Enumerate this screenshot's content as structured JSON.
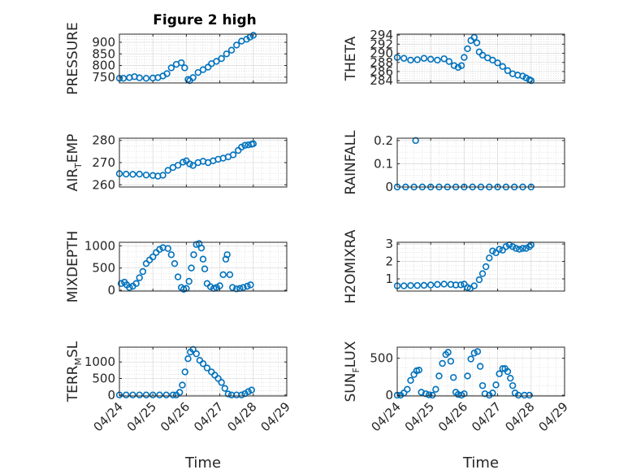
{
  "title": "Figure 2 high",
  "x_axis_label": "Time",
  "x_tick_labels": [
    "04/24",
    "04/25",
    "04/26",
    "04/27",
    "04/28",
    "04/29"
  ],
  "colors": {
    "marker": "#0072BD",
    "axis": "#262626",
    "grid": "#d0d0d0"
  },
  "chart_data": [
    {
      "type": "scatter",
      "key": "pressure",
      "position": "top-left",
      "ylabel": "PRESSURE",
      "ylim": [
        725,
        935
      ],
      "yticks": [
        750,
        800,
        850,
        900
      ],
      "ytick_labels": [
        "750",
        "800",
        "850",
        "900"
      ],
      "x_range_days": [
        0,
        5
      ],
      "points": [
        [
          0.0,
          745
        ],
        [
          0.12,
          745
        ],
        [
          0.3,
          748
        ],
        [
          0.45,
          752
        ],
        [
          0.6,
          747
        ],
        [
          0.8,
          745
        ],
        [
          1.0,
          746
        ],
        [
          1.15,
          748
        ],
        [
          1.3,
          755
        ],
        [
          1.42,
          765
        ],
        [
          1.55,
          790
        ],
        [
          1.7,
          805
        ],
        [
          1.85,
          812
        ],
        [
          1.95,
          790
        ],
        [
          2.05,
          740
        ],
        [
          2.1,
          735
        ],
        [
          2.2,
          748
        ],
        [
          2.35,
          770
        ],
        [
          2.5,
          782
        ],
        [
          2.65,
          793
        ],
        [
          2.75,
          808
        ],
        [
          2.9,
          818
        ],
        [
          3.05,
          830
        ],
        [
          3.2,
          850
        ],
        [
          3.35,
          866
        ],
        [
          3.5,
          888
        ],
        [
          3.65,
          905
        ],
        [
          3.8,
          913
        ],
        [
          3.9,
          922
        ],
        [
          4.0,
          930
        ]
      ]
    },
    {
      "type": "scatter",
      "key": "theta",
      "position": "top-right",
      "ylabel": "THETA",
      "ylim": [
        283.5,
        294.2
      ],
      "yticks": [
        284,
        286,
        288,
        290,
        292,
        294
      ],
      "ytick_labels": [
        "284",
        "286",
        "288",
        "290",
        "292",
        "294"
      ],
      "x_range_days": [
        0,
        5
      ],
      "points": [
        [
          0.0,
          289.1
        ],
        [
          0.2,
          288.9
        ],
        [
          0.4,
          288.5
        ],
        [
          0.6,
          288.6
        ],
        [
          0.8,
          288.9
        ],
        [
          1.0,
          288.7
        ],
        [
          1.2,
          288.5
        ],
        [
          1.4,
          288.8
        ],
        [
          1.55,
          288.2
        ],
        [
          1.7,
          287.3
        ],
        [
          1.82,
          286.9
        ],
        [
          1.92,
          287.3
        ],
        [
          2.0,
          289.1
        ],
        [
          2.1,
          291.0
        ],
        [
          2.2,
          292.8
        ],
        [
          2.3,
          293.5
        ],
        [
          2.38,
          292.3
        ],
        [
          2.45,
          290.3
        ],
        [
          2.55,
          289.6
        ],
        [
          2.7,
          289.0
        ],
        [
          2.85,
          288.5
        ],
        [
          3.0,
          287.9
        ],
        [
          3.15,
          287.1
        ],
        [
          3.3,
          286.2
        ],
        [
          3.45,
          285.5
        ],
        [
          3.6,
          285.2
        ],
        [
          3.75,
          285.0
        ],
        [
          3.85,
          284.6
        ],
        [
          3.95,
          284.2
        ],
        [
          4.0,
          284.0
        ]
      ]
    },
    {
      "type": "scatter",
      "key": "air_temp",
      "position": "row2-left",
      "ylabel": "AIR",
      "ylabel_sub": "T",
      "ylabel_suffix": "EMP",
      "ylim": [
        259,
        281
      ],
      "yticks": [
        260,
        270,
        280
      ],
      "ytick_labels": [
        "260",
        "270",
        "280"
      ],
      "x_range_days": [
        0,
        5
      ],
      "points": [
        [
          0.0,
          265.0
        ],
        [
          0.2,
          264.8
        ],
        [
          0.4,
          264.7
        ],
        [
          0.6,
          264.8
        ],
        [
          0.8,
          264.4
        ],
        [
          1.0,
          264.2
        ],
        [
          1.15,
          263.9
        ],
        [
          1.3,
          264.3
        ],
        [
          1.45,
          266.5
        ],
        [
          1.6,
          267.8
        ],
        [
          1.75,
          268.8
        ],
        [
          1.9,
          270.2
        ],
        [
          2.0,
          270.8
        ],
        [
          2.1,
          269.4
        ],
        [
          2.2,
          268.7
        ],
        [
          2.35,
          270.0
        ],
        [
          2.5,
          270.6
        ],
        [
          2.65,
          270.0
        ],
        [
          2.8,
          270.8
        ],
        [
          2.95,
          271.5
        ],
        [
          3.1,
          272.0
        ],
        [
          3.25,
          272.6
        ],
        [
          3.4,
          273.5
        ],
        [
          3.55,
          275.5
        ],
        [
          3.65,
          277.0
        ],
        [
          3.75,
          277.8
        ],
        [
          3.85,
          278.0
        ],
        [
          3.95,
          278.3
        ],
        [
          4.0,
          278.5
        ]
      ]
    },
    {
      "type": "scatter",
      "key": "rainfall",
      "position": "row2-right",
      "ylabel": "RAINFALL",
      "ylim": [
        0,
        0.21
      ],
      "yticks": [
        0,
        0.1,
        0.2
      ],
      "ytick_labels": [
        "0",
        "0.1",
        "0.2"
      ],
      "x_range_days": [
        0,
        5
      ],
      "points": [
        [
          0.0,
          0
        ],
        [
          0.25,
          0
        ],
        [
          0.5,
          0
        ],
        [
          0.55,
          0.2
        ],
        [
          0.75,
          0
        ],
        [
          1.0,
          0
        ],
        [
          1.25,
          0
        ],
        [
          1.5,
          0
        ],
        [
          1.75,
          0
        ],
        [
          2.0,
          0
        ],
        [
          2.25,
          0
        ],
        [
          2.5,
          0
        ],
        [
          2.75,
          0
        ],
        [
          3.0,
          0
        ],
        [
          3.25,
          0
        ],
        [
          3.5,
          0
        ],
        [
          3.75,
          0
        ],
        [
          4.0,
          0
        ]
      ]
    },
    {
      "type": "scatter",
      "key": "mixdepth",
      "position": "row3-left",
      "ylabel": "MIXDEPTH",
      "ylim": [
        -20,
        1080
      ],
      "yticks": [
        0,
        500,
        1000
      ],
      "ytick_labels": [
        "0",
        "500",
        "1000"
      ],
      "x_range_days": [
        0,
        5
      ],
      "points": [
        [
          0.05,
          150
        ],
        [
          0.15,
          180
        ],
        [
          0.22,
          120
        ],
        [
          0.3,
          60
        ],
        [
          0.4,
          90
        ],
        [
          0.5,
          150
        ],
        [
          0.6,
          280
        ],
        [
          0.7,
          420
        ],
        [
          0.8,
          600
        ],
        [
          0.9,
          680
        ],
        [
          1.0,
          750
        ],
        [
          1.1,
          850
        ],
        [
          1.2,
          920
        ],
        [
          1.3,
          960
        ],
        [
          1.45,
          940
        ],
        [
          1.55,
          800
        ],
        [
          1.65,
          600
        ],
        [
          1.75,
          300
        ],
        [
          1.85,
          60
        ],
        [
          1.92,
          20
        ],
        [
          2.0,
          40
        ],
        [
          2.08,
          200
        ],
        [
          2.15,
          500
        ],
        [
          2.22,
          800
        ],
        [
          2.3,
          1030
        ],
        [
          2.38,
          1050
        ],
        [
          2.45,
          950
        ],
        [
          2.5,
          700
        ],
        [
          2.55,
          480
        ],
        [
          2.62,
          150
        ],
        [
          2.72,
          80
        ],
        [
          2.82,
          40
        ],
        [
          2.9,
          60
        ],
        [
          3.0,
          100
        ],
        [
          3.1,
          350
        ],
        [
          3.18,
          700
        ],
        [
          3.22,
          800
        ],
        [
          3.3,
          350
        ],
        [
          3.38,
          60
        ],
        [
          3.5,
          30
        ],
        [
          3.6,
          40
        ],
        [
          3.7,
          60
        ],
        [
          3.82,
          90
        ],
        [
          3.92,
          120
        ]
      ]
    },
    {
      "type": "scatter",
      "key": "h2omixra",
      "position": "row3-right",
      "ylabel": "H2OMIXRA",
      "ylim": [
        0.3,
        3.1
      ],
      "yticks": [
        1,
        2,
        3
      ],
      "ytick_labels": [
        "1",
        "2",
        "3"
      ],
      "x_range_days": [
        0,
        5
      ],
      "points": [
        [
          0.0,
          0.6
        ],
        [
          0.2,
          0.6
        ],
        [
          0.4,
          0.62
        ],
        [
          0.6,
          0.62
        ],
        [
          0.8,
          0.63
        ],
        [
          1.0,
          0.65
        ],
        [
          1.2,
          0.68
        ],
        [
          1.4,
          0.7
        ],
        [
          1.6,
          0.68
        ],
        [
          1.75,
          0.65
        ],
        [
          1.9,
          0.66
        ],
        [
          2.0,
          0.7
        ],
        [
          2.1,
          0.5
        ],
        [
          2.18,
          0.45
        ],
        [
          2.3,
          0.6
        ],
        [
          2.45,
          0.95
        ],
        [
          2.55,
          1.3
        ],
        [
          2.65,
          1.7
        ],
        [
          2.75,
          2.2
        ],
        [
          2.85,
          2.6
        ],
        [
          2.95,
          2.5
        ],
        [
          3.05,
          2.7
        ],
        [
          3.15,
          2.65
        ],
        [
          3.25,
          2.85
        ],
        [
          3.35,
          2.95
        ],
        [
          3.45,
          2.85
        ],
        [
          3.55,
          2.75
        ],
        [
          3.65,
          2.7
        ],
        [
          3.75,
          2.75
        ],
        [
          3.85,
          2.75
        ],
        [
          3.95,
          2.85
        ],
        [
          4.0,
          2.95
        ]
      ]
    },
    {
      "type": "scatter",
      "key": "terr_msl",
      "position": "bottom-left",
      "ylabel": "TERR",
      "ylabel_sub": "M",
      "ylabel_suffix": "SL",
      "ylim": [
        -30,
        1450
      ],
      "yticks": [
        0,
        500,
        1000
      ],
      "ytick_labels": [
        "0",
        "500",
        "1000"
      ],
      "x_range_days": [
        0,
        5
      ],
      "points": [
        [
          0.0,
          0
        ],
        [
          0.2,
          0
        ],
        [
          0.4,
          0
        ],
        [
          0.6,
          0
        ],
        [
          0.8,
          0
        ],
        [
          1.0,
          0
        ],
        [
          1.2,
          0
        ],
        [
          1.4,
          0
        ],
        [
          1.6,
          0
        ],
        [
          1.7,
          0
        ],
        [
          1.8,
          80
        ],
        [
          1.88,
          300
        ],
        [
          1.96,
          700
        ],
        [
          2.05,
          1100
        ],
        [
          2.12,
          1300
        ],
        [
          2.2,
          1380
        ],
        [
          2.3,
          1250
        ],
        [
          2.4,
          1050
        ],
        [
          2.5,
          950
        ],
        [
          2.62,
          820
        ],
        [
          2.75,
          700
        ],
        [
          2.85,
          600
        ],
        [
          2.95,
          500
        ],
        [
          3.05,
          380
        ],
        [
          3.15,
          200
        ],
        [
          3.25,
          30
        ],
        [
          3.35,
          0
        ],
        [
          3.5,
          0
        ],
        [
          3.65,
          0
        ],
        [
          3.75,
          40
        ],
        [
          3.85,
          100
        ],
        [
          3.95,
          150
        ]
      ]
    },
    {
      "type": "scatter",
      "key": "sun_flux",
      "position": "bottom-right",
      "ylabel": "SUN",
      "ylabel_sub": "F",
      "ylabel_suffix": "LUX",
      "ylim": [
        -10,
        650
      ],
      "yticks": [
        0,
        500
      ],
      "ytick_labels": [
        "0",
        "500"
      ],
      "x_range_days": [
        0,
        5
      ],
      "points": [
        [
          0.0,
          0
        ],
        [
          0.1,
          0
        ],
        [
          0.2,
          30
        ],
        [
          0.3,
          80
        ],
        [
          0.4,
          200
        ],
        [
          0.5,
          280
        ],
        [
          0.58,
          330
        ],
        [
          0.65,
          340
        ],
        [
          0.72,
          40
        ],
        [
          0.85,
          20
        ],
        [
          0.95,
          5
        ],
        [
          1.05,
          0
        ],
        [
          1.15,
          80
        ],
        [
          1.25,
          260
        ],
        [
          1.35,
          430
        ],
        [
          1.45,
          550
        ],
        [
          1.52,
          580
        ],
        [
          1.6,
          460
        ],
        [
          1.68,
          240
        ],
        [
          1.75,
          40
        ],
        [
          1.82,
          10
        ],
        [
          1.92,
          0
        ],
        [
          2.0,
          20
        ],
        [
          2.1,
          260
        ],
        [
          2.2,
          490
        ],
        [
          2.3,
          570
        ],
        [
          2.4,
          590
        ],
        [
          2.48,
          390
        ],
        [
          2.55,
          130
        ],
        [
          2.62,
          20
        ],
        [
          2.75,
          0
        ],
        [
          2.85,
          30
        ],
        [
          2.95,
          140
        ],
        [
          3.05,
          290
        ],
        [
          3.15,
          360
        ],
        [
          3.22,
          360
        ],
        [
          3.3,
          320
        ],
        [
          3.38,
          230
        ],
        [
          3.45,
          130
        ],
        [
          3.52,
          30
        ],
        [
          3.62,
          0
        ],
        [
          3.8,
          0
        ],
        [
          3.95,
          0
        ]
      ]
    }
  ]
}
